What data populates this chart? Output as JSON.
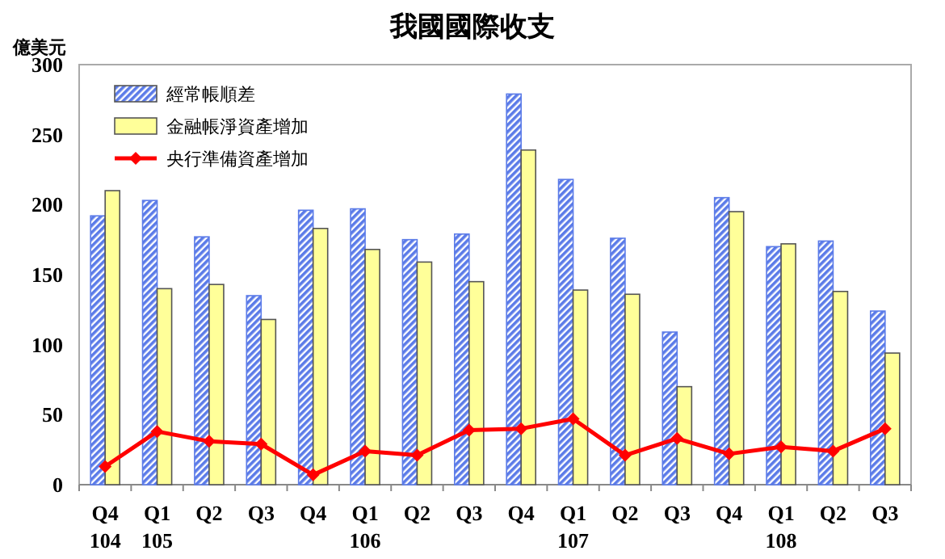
{
  "chart_data": {
    "type": "bar",
    "title": "我國國際收支",
    "ylabel": "億美元",
    "categories": [
      "Q4\n104",
      "Q1\n105",
      "Q2",
      "Q3",
      "Q4",
      "Q1\n106",
      "Q2",
      "Q3",
      "Q4",
      "Q1\n107",
      "Q2",
      "Q3",
      "Q4",
      "Q1\n108",
      "Q2",
      "Q3"
    ],
    "series": [
      {
        "name": "經常帳順差",
        "color": "#5b7be8",
        "values": [
          192,
          203,
          177,
          135,
          196,
          197,
          175,
          179,
          279,
          218,
          176,
          109,
          205,
          170,
          174,
          124
        ]
      },
      {
        "name": "金融帳淨資產增加",
        "color": "#ffff99",
        "values": [
          210,
          140,
          143,
          118,
          183,
          168,
          159,
          145,
          239,
          139,
          136,
          70,
          195,
          172,
          138,
          94
        ]
      },
      {
        "name": "央行準備資產增加",
        "type": "line",
        "color": "#ff0000",
        "marker": "diamond",
        "values": [
          13,
          38,
          31,
          29,
          7,
          24,
          21,
          39,
          40,
          47,
          21,
          33,
          22,
          27,
          24,
          40
        ]
      }
    ],
    "ylim": [
      0,
      300
    ],
    "yticks": [
      0,
      50,
      100,
      150,
      200,
      250,
      300
    ],
    "grid": false,
    "legend": "top left"
  }
}
